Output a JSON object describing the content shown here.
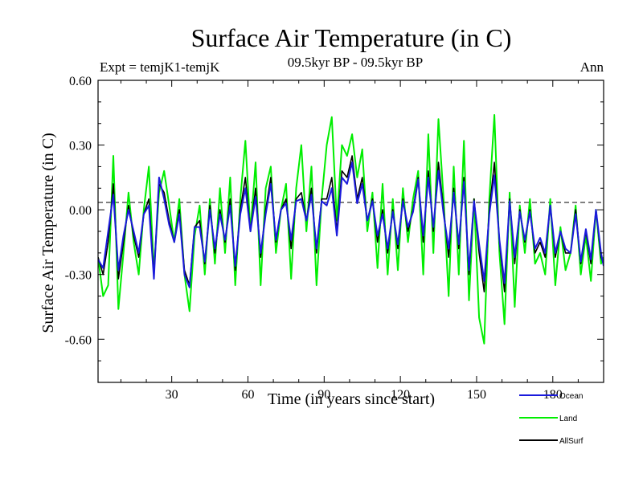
{
  "chart_data": {
    "type": "line",
    "title": "Surface Air Temperature (in C)",
    "subtitle_left": "Expt = temjK1-temjK",
    "subtitle_center": "09.5kyr BP - 09.5kyr BP",
    "subtitle_right": "Ann",
    "xlabel": "Time (in years since start)",
    "ylabel": "Surface Air Temperature (in C)",
    "xlim": [
      1,
      200
    ],
    "ylim": [
      -0.8,
      0.6
    ],
    "x_ticks": [
      30,
      60,
      90,
      120,
      150,
      180
    ],
    "x_tick_labels": [
      "30",
      "60",
      "90",
      "120",
      "150",
      "180"
    ],
    "y_ticks": [
      0.6,
      0.3,
      0.0,
      -0.3,
      -0.6
    ],
    "y_tick_labels": [
      "0.60",
      "0.30",
      "0.00",
      "-0.30",
      "-0.60"
    ],
    "zero_line": "dashed",
    "legend_position": "bottom-right",
    "series": [
      {
        "name": "Land",
        "color": "#00ee00",
        "x": [
          1,
          3,
          5,
          7,
          9,
          11,
          13,
          15,
          17,
          19,
          21,
          23,
          25,
          27,
          29,
          31,
          33,
          35,
          37,
          39,
          41,
          43,
          45,
          47,
          49,
          51,
          53,
          55,
          57,
          59,
          61,
          63,
          65,
          67,
          69,
          71,
          73,
          75,
          77,
          79,
          81,
          83,
          85,
          87,
          89,
          91,
          93,
          95,
          97,
          99,
          101,
          103,
          105,
          107,
          109,
          111,
          113,
          115,
          117,
          119,
          121,
          123,
          125,
          127,
          129,
          131,
          133,
          135,
          137,
          139,
          141,
          143,
          145,
          147,
          149,
          151,
          153,
          155,
          157,
          159,
          161,
          163,
          165,
          167,
          169,
          171,
          173,
          175,
          177,
          179,
          181,
          183,
          185,
          187,
          189,
          191,
          193,
          195,
          197,
          199,
          200
        ],
        "values": [
          -0.22,
          -0.4,
          -0.35,
          0.25,
          -0.46,
          -0.2,
          0.08,
          -0.15,
          -0.3,
          0.0,
          0.2,
          -0.28,
          0.08,
          0.18,
          0.02,
          -0.15,
          0.05,
          -0.3,
          -0.47,
          -0.12,
          0.02,
          -0.3,
          0.05,
          -0.25,
          0.1,
          -0.2,
          0.15,
          -0.35,
          0.05,
          0.32,
          -0.1,
          0.22,
          -0.35,
          0.1,
          0.2,
          -0.2,
          0.0,
          0.12,
          -0.32,
          0.1,
          0.3,
          -0.1,
          0.2,
          -0.35,
          0.05,
          0.3,
          0.43,
          -0.05,
          0.3,
          0.25,
          0.35,
          0.15,
          0.28,
          -0.1,
          0.08,
          -0.27,
          0.12,
          -0.3,
          0.05,
          -0.28,
          0.1,
          -0.15,
          0.05,
          0.18,
          -0.3,
          0.35,
          -0.2,
          0.42,
          0.05,
          -0.4,
          0.2,
          -0.3,
          0.32,
          -0.42,
          0.05,
          -0.5,
          -0.62,
          0.05,
          0.44,
          -0.2,
          -0.53,
          0.08,
          -0.45,
          0.02,
          -0.2,
          0.05,
          -0.25,
          -0.2,
          -0.3,
          0.05,
          -0.35,
          -0.08,
          -0.28,
          -0.2,
          0.02,
          -0.3,
          -0.12,
          -0.33,
          0.0,
          -0.25,
          -0.22
        ]
      },
      {
        "name": "AllSurf",
        "color": "#000000",
        "x": [
          1,
          3,
          5,
          7,
          9,
          11,
          13,
          15,
          17,
          19,
          21,
          23,
          25,
          27,
          29,
          31,
          33,
          35,
          37,
          39,
          41,
          43,
          45,
          47,
          49,
          51,
          53,
          55,
          57,
          59,
          61,
          63,
          65,
          67,
          69,
          71,
          73,
          75,
          77,
          79,
          81,
          83,
          85,
          87,
          89,
          91,
          93,
          95,
          97,
          99,
          101,
          103,
          105,
          107,
          109,
          111,
          113,
          115,
          117,
          119,
          121,
          123,
          125,
          127,
          129,
          131,
          133,
          135,
          137,
          139,
          141,
          143,
          145,
          147,
          149,
          151,
          153,
          155,
          157,
          159,
          161,
          163,
          165,
          167,
          169,
          171,
          173,
          175,
          177,
          179,
          181,
          183,
          185,
          187,
          189,
          191,
          193,
          195,
          197,
          199,
          200
        ],
        "values": [
          -0.22,
          -0.3,
          -0.15,
          0.12,
          -0.32,
          -0.15,
          0.02,
          -0.12,
          -0.22,
          -0.02,
          0.05,
          -0.3,
          0.12,
          0.08,
          -0.05,
          -0.15,
          0.0,
          -0.28,
          -0.35,
          -0.08,
          -0.05,
          -0.25,
          0.02,
          -0.2,
          0.0,
          -0.15,
          0.05,
          -0.28,
          0.0,
          0.15,
          -0.1,
          0.1,
          -0.22,
          0.0,
          0.15,
          -0.15,
          0.0,
          0.05,
          -0.18,
          0.05,
          0.08,
          -0.05,
          0.1,
          -0.2,
          0.05,
          0.05,
          0.15,
          -0.1,
          0.18,
          0.15,
          0.25,
          0.05,
          0.15,
          -0.05,
          0.05,
          -0.15,
          0.0,
          -0.2,
          0.0,
          -0.18,
          0.05,
          -0.1,
          0.0,
          0.15,
          -0.15,
          0.18,
          -0.1,
          0.22,
          0.0,
          -0.22,
          0.1,
          -0.18,
          0.15,
          -0.3,
          0.05,
          -0.2,
          -0.38,
          0.0,
          0.22,
          -0.15,
          -0.38,
          0.05,
          -0.25,
          0.0,
          -0.15,
          0.0,
          -0.2,
          -0.15,
          -0.22,
          0.02,
          -0.22,
          -0.1,
          -0.2,
          -0.2,
          0.0,
          -0.25,
          -0.1,
          -0.25,
          0.0,
          -0.22,
          -0.25
        ]
      },
      {
        "name": "Ocean",
        "color": "#1a1adc",
        "x": [
          1,
          3,
          5,
          7,
          9,
          11,
          13,
          15,
          17,
          19,
          21,
          23,
          25,
          27,
          29,
          31,
          33,
          35,
          37,
          39,
          41,
          43,
          45,
          47,
          49,
          51,
          53,
          55,
          57,
          59,
          61,
          63,
          65,
          67,
          69,
          71,
          73,
          75,
          77,
          79,
          81,
          83,
          85,
          87,
          89,
          91,
          93,
          95,
          97,
          99,
          101,
          103,
          105,
          107,
          109,
          111,
          113,
          115,
          117,
          119,
          121,
          123,
          125,
          127,
          129,
          131,
          133,
          135,
          137,
          139,
          141,
          143,
          145,
          147,
          149,
          151,
          153,
          155,
          157,
          159,
          161,
          163,
          165,
          167,
          169,
          171,
          173,
          175,
          177,
          179,
          181,
          183,
          185,
          187,
          189,
          191,
          193,
          195,
          197,
          199,
          200
        ],
        "values": [
          -0.23,
          -0.27,
          -0.1,
          0.07,
          -0.28,
          -0.12,
          0.0,
          -0.1,
          -0.2,
          -0.02,
          0.02,
          -0.32,
          0.15,
          0.05,
          -0.07,
          -0.15,
          -0.02,
          -0.3,
          -0.36,
          -0.08,
          -0.08,
          -0.24,
          0.0,
          -0.18,
          -0.02,
          -0.14,
          0.02,
          -0.26,
          -0.02,
          0.1,
          -0.1,
          0.06,
          -0.2,
          -0.02,
          0.12,
          -0.14,
          0.0,
          0.03,
          -0.14,
          0.04,
          0.05,
          -0.05,
          0.07,
          -0.18,
          0.04,
          0.02,
          0.1,
          -0.12,
          0.15,
          0.12,
          0.22,
          0.03,
          0.12,
          -0.05,
          0.04,
          -0.12,
          -0.02,
          -0.18,
          -0.01,
          -0.16,
          0.04,
          -0.08,
          -0.01,
          0.14,
          -0.12,
          0.15,
          -0.08,
          0.18,
          -0.02,
          -0.18,
          0.08,
          -0.16,
          0.13,
          -0.28,
          0.04,
          -0.16,
          -0.33,
          -0.02,
          0.16,
          -0.14,
          -0.34,
          0.04,
          -0.22,
          -0.01,
          -0.14,
          -0.01,
          -0.18,
          -0.13,
          -0.2,
          0.02,
          -0.2,
          -0.1,
          -0.18,
          -0.2,
          -0.02,
          -0.24,
          -0.09,
          -0.23,
          0.0,
          -0.2,
          -0.26
        ]
      }
    ]
  }
}
